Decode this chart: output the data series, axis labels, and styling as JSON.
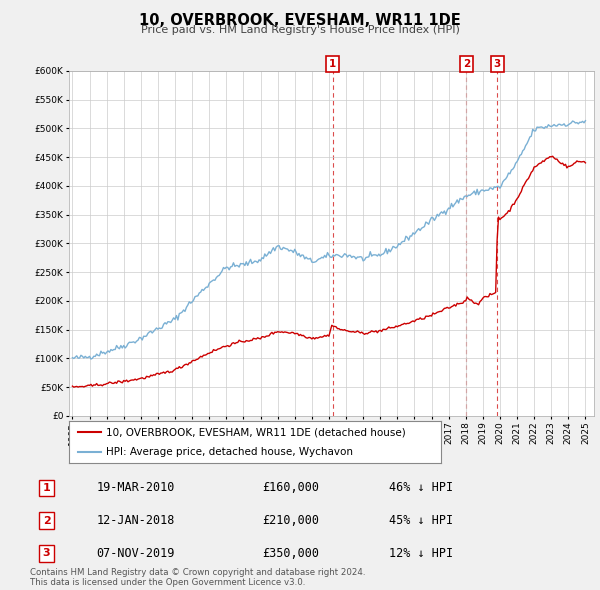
{
  "title": "10, OVERBROOK, EVESHAM, WR11 1DE",
  "subtitle": "Price paid vs. HM Land Registry's House Price Index (HPI)",
  "ylim": [
    0,
    600000
  ],
  "yticks": [
    0,
    50000,
    100000,
    150000,
    200000,
    250000,
    300000,
    350000,
    400000,
    450000,
    500000,
    550000,
    600000
  ],
  "xlim_start": 1994.8,
  "xlim_end": 2025.5,
  "property_color": "#cc0000",
  "hpi_color": "#7ab0d4",
  "transactions": [
    {
      "label": "1",
      "date_str": "19-MAR-2010",
      "year": 2010.21,
      "price": 160000,
      "hpi_pct": "46% ↓ HPI"
    },
    {
      "label": "2",
      "date_str": "12-JAN-2018",
      "year": 2018.04,
      "price": 210000,
      "hpi_pct": "45% ↓ HPI"
    },
    {
      "label": "3",
      "date_str": "07-NOV-2019",
      "year": 2019.85,
      "price": 350000,
      "hpi_pct": "12% ↓ HPI"
    }
  ],
  "legend_property": "10, OVERBROOK, EVESHAM, WR11 1DE (detached house)",
  "legend_hpi": "HPI: Average price, detached house, Wychavon",
  "footer": "Contains HM Land Registry data © Crown copyright and database right 2024.\nThis data is licensed under the Open Government Licence v3.0.",
  "bg_color": "#f0f0f0",
  "plot_bg_color": "#ffffff"
}
